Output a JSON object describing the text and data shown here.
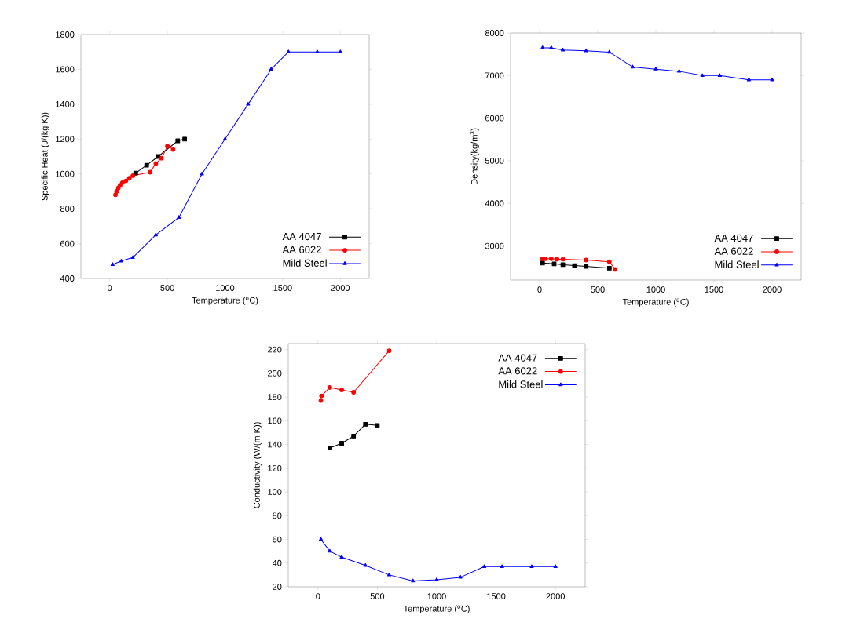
{
  "chart_data": [
    {
      "type": "line",
      "xlabel": "Temperature ($^{o}$C)",
      "ylabel": "Specific Heat (J/(kg K))",
      "xlim": [
        -250,
        2250
      ],
      "ylim": [
        400,
        1800
      ],
      "xticks": [
        0,
        500,
        1000,
        1500,
        2000
      ],
      "yticks": [
        400,
        600,
        800,
        1000,
        1200,
        1400,
        1600,
        1800
      ],
      "legend": "bottom right",
      "grid": false,
      "series": [
        {
          "name": "AA 4047",
          "color": "#000000",
          "marker": "square",
          "x": [
            225,
            320,
            420,
            590,
            650
          ],
          "values": [
            1005,
            1050,
            1100,
            1190,
            1200
          ]
        },
        {
          "name": "AA 6022",
          "color": "#ff0000",
          "marker": "circle",
          "x": [
            50,
            60,
            75,
            90,
            110,
            140,
            170,
            200,
            350,
            400,
            450,
            500,
            550
          ],
          "values": [
            880,
            900,
            920,
            935,
            950,
            960,
            975,
            990,
            1010,
            1060,
            1090,
            1160,
            1140
          ]
        },
        {
          "name": "Mild Steel",
          "color": "#0000ff",
          "marker": "triangle",
          "x": [
            25,
            100,
            200,
            400,
            600,
            800,
            1000,
            1200,
            1400,
            1550,
            1800,
            2000
          ],
          "values": [
            480,
            500,
            520,
            650,
            750,
            1000,
            1200,
            1400,
            1600,
            1700,
            1700,
            1700
          ]
        }
      ]
    },
    {
      "type": "line",
      "xlabel": "Temperature ($^{o}$C)",
      "ylabel": "Density(kg/m$^{3}$)",
      "xlim": [
        -250,
        2250
      ],
      "ylim": [
        2200,
        8000
      ],
      "xticks": [
        0,
        500,
        1000,
        1500,
        2000
      ],
      "yticks": [
        3000,
        4000,
        5000,
        6000,
        7000,
        8000
      ],
      "legend": "bottom right",
      "grid": false,
      "series": [
        {
          "name": "AA 4047",
          "color": "#000000",
          "marker": "square",
          "x": [
            25,
            125,
            200,
            300,
            400,
            600
          ],
          "values": [
            2600,
            2580,
            2560,
            2540,
            2520,
            2480
          ]
        },
        {
          "name": "AA 6022",
          "color": "#ff0000",
          "marker": "circle",
          "x": [
            25,
            50,
            100,
            150,
            200,
            400,
            600,
            650
          ],
          "values": [
            2700,
            2700,
            2700,
            2690,
            2690,
            2670,
            2630,
            2450
          ]
        },
        {
          "name": "Mild Steel",
          "color": "#0000ff",
          "marker": "triangle",
          "x": [
            25,
            100,
            200,
            400,
            600,
            800,
            1000,
            1200,
            1400,
            1550,
            1800,
            2000
          ],
          "values": [
            7650,
            7650,
            7600,
            7580,
            7550,
            7200,
            7150,
            7100,
            7000,
            7000,
            6900,
            6900
          ]
        }
      ]
    },
    {
      "type": "line",
      "xlabel": "Temperature ($^{o}$C)",
      "ylabel": "Conductivity (W/(m K))",
      "xlim": [
        -250,
        2250
      ],
      "ylim": [
        20,
        225
      ],
      "xticks": [
        0,
        500,
        1000,
        1500,
        2000
      ],
      "yticks": [
        20,
        40,
        60,
        80,
        100,
        120,
        140,
        160,
        180,
        200,
        220
      ],
      "legend": "top right",
      "grid": false,
      "series": [
        {
          "name": "AA 4047",
          "color": "#000000",
          "marker": "square",
          "x": [
            100,
            200,
            300,
            400,
            500
          ],
          "values": [
            137,
            141,
            147,
            157,
            156
          ]
        },
        {
          "name": "AA 6022",
          "color": "#ff0000",
          "marker": "circle",
          "x": [
            25,
            30,
            100,
            200,
            300,
            600
          ],
          "values": [
            177,
            181,
            188,
            186,
            184,
            219
          ]
        },
        {
          "name": "Mild Steel",
          "color": "#0000ff",
          "marker": "triangle",
          "x": [
            25,
            100,
            200,
            400,
            600,
            800,
            1000,
            1200,
            1400,
            1550,
            1800,
            2000
          ],
          "values": [
            60,
            50,
            45,
            38,
            30,
            25,
            26,
            28,
            37,
            37,
            37,
            37
          ]
        }
      ]
    }
  ]
}
